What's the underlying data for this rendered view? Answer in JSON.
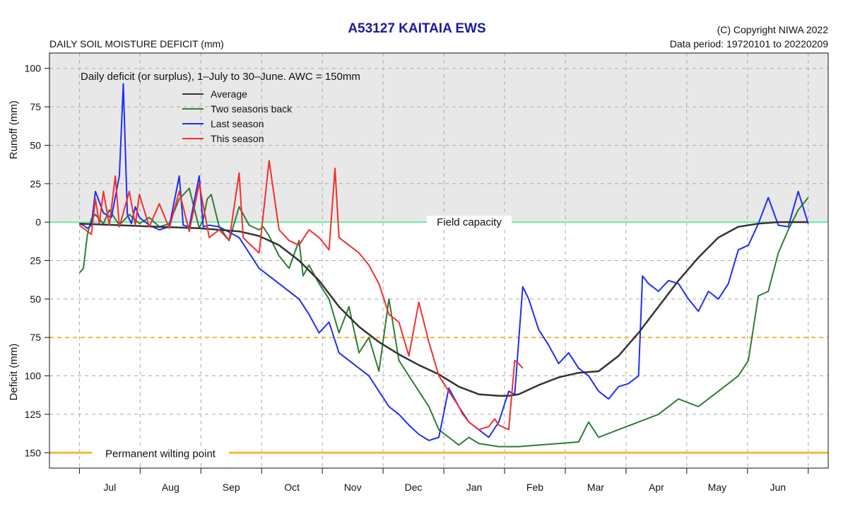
{
  "header": {
    "title": "A53127  KAITAIA EWS",
    "subtitle_left": "DAILY SOIL MOISTURE DEFICIT (mm)",
    "copyright": "(C) Copyright NIWA  2022",
    "data_period": "Data period:  19720101  to  20220209"
  },
  "colors": {
    "average": "#333333",
    "two_seasons_back": "#2e7d32",
    "last_season": "#1f2ff5",
    "this_season": "#f03030",
    "field_capacity": "#66f0a8",
    "wilting_point": "#f5b73a",
    "upper_band": "#e8e8e8",
    "grid": "#aaaaaa"
  },
  "chart_data": {
    "type": "line",
    "subtitle": "Daily deficit (or surplus), 1–July to 30–June.  AWC = 150mm",
    "y_label_top": "Runoff (mm)",
    "y_label_bottom": "Deficit (mm)",
    "x_tick_labels": [
      "Jul",
      "Aug",
      "Sep",
      "Oct",
      "Nov",
      "Dec",
      "Jan",
      "Feb",
      "Mar",
      "Apr",
      "May",
      "Jun"
    ],
    "y_tick_values": [
      100,
      75,
      50,
      25,
      0,
      -25,
      -50,
      -75,
      -100,
      -125,
      -150
    ],
    "y_tick_labels": [
      "100",
      "75",
      "50",
      "25",
      "0",
      "25",
      "50",
      "75",
      "100",
      "125",
      "150"
    ],
    "ylim": [
      -160,
      110
    ],
    "xlim": [
      -15,
      375
    ],
    "grid": true,
    "legend_position": "top-left",
    "reference_lines": [
      {
        "label": "Field capacity",
        "y": 0
      },
      {
        "label": "Permanent wilting point",
        "y": -150
      }
    ],
    "series": [
      {
        "name": "Average",
        "x": [
          0,
          20,
          40,
          60,
          80,
          90,
          100,
          110,
          120,
          130,
          140,
          150,
          160,
          170,
          180,
          190,
          200,
          210,
          215,
          220,
          230,
          240,
          250,
          260,
          270,
          280,
          290,
          300,
          310,
          320,
          330,
          340,
          350,
          360,
          365
        ],
        "y": [
          -1,
          -2,
          -3,
          -4,
          -6,
          -9,
          -15,
          -25,
          -38,
          -55,
          -68,
          -78,
          -86,
          -93,
          -99,
          -107,
          -112,
          -113,
          -113,
          -112,
          -106,
          -101,
          -98,
          -97,
          -87,
          -72,
          -55,
          -38,
          -23,
          -10,
          -3,
          -1,
          0,
          0,
          0
        ]
      },
      {
        "name": "Two seasons back",
        "x": [
          0,
          2,
          4,
          6,
          8,
          12,
          15,
          20,
          25,
          30,
          35,
          40,
          45,
          50,
          55,
          60,
          62,
          64,
          66,
          70,
          75,
          80,
          85,
          90,
          92,
          95,
          100,
          105,
          110,
          112,
          115,
          120,
          125,
          130,
          135,
          140,
          145,
          150,
          155,
          160,
          165,
          170,
          175,
          180,
          185,
          190,
          195,
          200,
          205,
          210,
          215,
          220,
          230,
          240,
          250,
          255,
          260,
          270,
          280,
          290,
          300,
          310,
          320,
          330,
          335,
          340,
          345,
          350,
          355,
          360,
          365
        ],
        "y": [
          -33,
          -30,
          -8,
          2,
          5,
          -1,
          8,
          -2,
          5,
          -1,
          3,
          -3,
          -1,
          15,
          22,
          -4,
          2,
          15,
          18,
          -3,
          -12,
          10,
          -2,
          -5,
          -3,
          -9,
          -22,
          -30,
          -12,
          -35,
          -28,
          -40,
          -50,
          -72,
          -55,
          -85,
          -75,
          -97,
          -50,
          -90,
          -100,
          -110,
          -120,
          -135,
          -140,
          -145,
          -140,
          -144,
          -145,
          -146,
          -146,
          -146,
          -145,
          -144,
          -143,
          -130,
          -140,
          -135,
          -130,
          -125,
          -115,
          -120,
          -110,
          -100,
          -90,
          -48,
          -45,
          -20,
          -5,
          8,
          16
        ]
      },
      {
        "name": "Last season",
        "x": [
          0,
          2,
          4,
          6,
          8,
          12,
          16,
          20,
          22,
          24,
          26,
          28,
          30,
          35,
          40,
          45,
          50,
          52,
          55,
          60,
          62,
          65,
          70,
          80,
          90,
          100,
          110,
          115,
          120,
          125,
          130,
          135,
          140,
          145,
          150,
          155,
          160,
          165,
          170,
          175,
          180,
          185,
          190,
          195,
          200,
          205,
          210,
          215,
          218,
          222,
          225,
          230,
          235,
          240,
          245,
          250,
          255,
          260,
          265,
          270,
          275,
          280,
          282,
          285,
          290,
          295,
          300,
          305,
          310,
          315,
          320,
          325,
          330,
          335,
          340,
          345,
          350,
          355,
          360,
          365
        ],
        "y": [
          -1,
          -2,
          -4,
          -2,
          20,
          6,
          3,
          30,
          90,
          5,
          -1,
          10,
          3,
          -2,
          -5,
          -3,
          30,
          -2,
          -3,
          30,
          -3,
          -2,
          -3,
          -10,
          -30,
          -40,
          -50,
          -60,
          -72,
          -65,
          -85,
          -90,
          -95,
          -100,
          -110,
          -120,
          -125,
          -132,
          -138,
          -142,
          -140,
          -108,
          -120,
          -130,
          -135,
          -140,
          -130,
          -110,
          -112,
          -42,
          -50,
          -70,
          -80,
          -92,
          -85,
          -95,
          -100,
          -110,
          -115,
          -107,
          -105,
          -100,
          -35,
          -40,
          -45,
          -38,
          -40,
          -50,
          -58,
          -45,
          -50,
          -40,
          -18,
          -15,
          -1,
          16,
          -2,
          -3,
          20,
          -1
        ]
      },
      {
        "name": "This season",
        "x": [
          0,
          3,
          6,
          8,
          10,
          12,
          15,
          18,
          20,
          25,
          28,
          30,
          35,
          40,
          45,
          50,
          55,
          60,
          65,
          70,
          75,
          80,
          82,
          85,
          90,
          95,
          100,
          105,
          110,
          115,
          120,
          125,
          128,
          130,
          135,
          140,
          145,
          150,
          155,
          160,
          165,
          170,
          175,
          180,
          185,
          190,
          192,
          195,
          200,
          205,
          208,
          210,
          215,
          218,
          220,
          222
        ],
        "y": [
          -2,
          -5,
          -8,
          15,
          -1,
          20,
          -2,
          30,
          -3,
          20,
          -2,
          18,
          -3,
          12,
          -4,
          20,
          -6,
          25,
          -10,
          -5,
          -12,
          32,
          -10,
          -14,
          -20,
          40,
          -5,
          -12,
          -15,
          -5,
          -10,
          -18,
          35,
          -10,
          -15,
          -20,
          -28,
          -40,
          -60,
          -65,
          -87,
          -52,
          -78,
          -100,
          -110,
          -120,
          -125,
          -130,
          -135,
          -133,
          -128,
          -132,
          -135,
          -90,
          -92,
          -95
        ]
      }
    ]
  }
}
